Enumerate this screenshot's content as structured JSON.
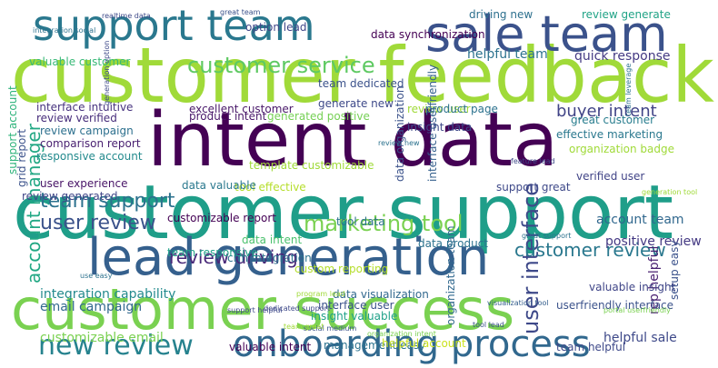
{
  "wordcloud": {
    "words": [
      {
        "text": "customer feedback",
        "weight": 1.0,
        "color": "#a0da39"
      },
      {
        "text": "intent data",
        "weight": 0.95,
        "color": "#440154"
      },
      {
        "text": "customer support",
        "weight": 0.93,
        "color": "#1f9e89"
      },
      {
        "text": "lead generation",
        "weight": 0.86,
        "color": "#35608d"
      },
      {
        "text": "customer success",
        "weight": 0.85,
        "color": "#7ad151"
      },
      {
        "text": "support team",
        "weight": 0.72,
        "color": "#2a788e"
      },
      {
        "text": "sale team",
        "weight": 0.7,
        "color": "#3b528b"
      },
      {
        "text": "onboarding process",
        "weight": 0.55,
        "color": "#31688e"
      },
      {
        "text": "new review",
        "weight": 0.45,
        "color": "#26828e"
      },
      {
        "text": "customer service",
        "weight": 0.34,
        "color": "#5ec962"
      },
      {
        "text": "marketing tool",
        "weight": 0.3,
        "color": "#7ad151"
      },
      {
        "text": "user interface",
        "weight": 0.27,
        "color": "#3e4989"
      },
      {
        "text": "account manager",
        "weight": 0.26,
        "color": "#22a884"
      },
      {
        "text": "team support",
        "weight": 0.25,
        "color": "#2c728e"
      },
      {
        "text": "user review",
        "weight": 0.25,
        "color": "#3b528b"
      },
      {
        "text": "customer review",
        "weight": 0.24,
        "color": "#2a788e"
      },
      {
        "text": "review driving",
        "weight": 0.22,
        "color": "#482878"
      },
      {
        "text": "buyer intent",
        "weight": 0.2,
        "color": "#414487"
      },
      {
        "text": "helpful sale",
        "weight": 0.19,
        "color": "#3e4989"
      },
      {
        "text": "quick response",
        "weight": 0.16,
        "color": "#443a83"
      },
      {
        "text": "helpful team",
        "weight": 0.16,
        "color": "#2c728e"
      },
      {
        "text": "customizable email",
        "weight": 0.16,
        "color": "#7ad151"
      },
      {
        "text": "email campaign",
        "weight": 0.15,
        "color": "#31688e"
      },
      {
        "text": "account team",
        "weight": 0.15,
        "color": "#31688e"
      },
      {
        "text": "positive review",
        "weight": 0.14,
        "color": "#443983"
      },
      {
        "text": "integration capability",
        "weight": 0.14,
        "color": "#238a8d"
      },
      {
        "text": "setup easy",
        "weight": 0.14,
        "color": "#3b528b"
      },
      {
        "text": "rep helpful",
        "weight": 0.14,
        "color": "#481f70"
      },
      {
        "text": "excellent customer",
        "weight": 0.13,
        "color": "#481769"
      },
      {
        "text": "product intent",
        "weight": 0.13,
        "color": "#481769"
      },
      {
        "text": "review campaign",
        "weight": 0.13,
        "color": "#2d708e"
      },
      {
        "text": "driving new",
        "weight": 0.13,
        "color": "#2d708e"
      },
      {
        "text": "review generate",
        "weight": 0.13,
        "color": "#20a386"
      },
      {
        "text": "interface intuitive",
        "weight": 0.12,
        "color": "#46327e"
      },
      {
        "text": "review verified",
        "weight": 0.12,
        "color": "#472d7b"
      },
      {
        "text": "comparison report",
        "weight": 0.12,
        "color": "#481f70"
      },
      {
        "text": "responsive account",
        "weight": 0.12,
        "color": "#238a8d"
      },
      {
        "text": "generated positive",
        "weight": 0.12,
        "color": "#75d054"
      },
      {
        "text": "great customer",
        "weight": 0.12,
        "color": "#287d8e"
      },
      {
        "text": "effective marketing",
        "weight": 0.12,
        "color": "#2a788e"
      },
      {
        "text": "organization badge",
        "weight": 0.12,
        "color": "#a0da39"
      },
      {
        "text": "template customizable",
        "weight": 0.12,
        "color": "#a0da39"
      },
      {
        "text": "verified user",
        "weight": 0.12,
        "color": "#414487"
      },
      {
        "text": "valuable customer",
        "weight": 0.12,
        "color": "#38b977"
      },
      {
        "text": "generate new",
        "weight": 0.11,
        "color": "#3e4989"
      },
      {
        "text": "customizable report",
        "weight": 0.11,
        "color": "#440154"
      },
      {
        "text": "review generated",
        "weight": 0.11,
        "color": "#404688"
      },
      {
        "text": "user experience",
        "weight": 0.11,
        "color": "#481467"
      },
      {
        "text": "team helpful",
        "weight": 0.11,
        "color": "#3e4989"
      },
      {
        "text": "support account",
        "weight": 0.11,
        "color": "#2fb47c"
      },
      {
        "text": "tool effective",
        "weight": 0.11,
        "color": "#b5de2b"
      },
      {
        "text": "support great",
        "weight": 0.1,
        "color": "#3e4989"
      },
      {
        "text": "crm integration",
        "weight": 0.1,
        "color": "#2c728e"
      },
      {
        "text": "team responsive",
        "weight": 0.1,
        "color": "#1fa188"
      },
      {
        "text": "data intent",
        "weight": 0.1,
        "color": "#4ac16d"
      },
      {
        "text": "interface user",
        "weight": 0.09,
        "color": "#3b528b"
      },
      {
        "text": "insight valuable",
        "weight": 0.09,
        "color": "#1fa188"
      },
      {
        "text": "valuable intent",
        "weight": 0.09,
        "color": "#440154"
      },
      {
        "text": "management easy",
        "weight": 0.09,
        "color": "#2c728e"
      },
      {
        "text": "helpful account",
        "weight": 0.09,
        "color": "#cae11f"
      },
      {
        "text": "review user",
        "weight": 0.09,
        "color": "#a0da39"
      },
      {
        "text": "product page",
        "weight": 0.09,
        "color": "#2c728e"
      },
      {
        "text": "userfriendly interface",
        "weight": 0.09,
        "color": "#3b528b"
      },
      {
        "text": "data visualization",
        "weight": 0.08,
        "color": "#31688e"
      },
      {
        "text": "organization team",
        "weight": 0.08,
        "color": "#31688e"
      },
      {
        "text": "interface userfriendly",
        "weight": 0.08,
        "color": "#35608d"
      },
      {
        "text": "data product",
        "weight": 0.08,
        "color": "#2c728e"
      },
      {
        "text": "data valuable",
        "weight": 0.08,
        "color": "#2a788e"
      },
      {
        "text": "custom reporting",
        "weight": 0.08,
        "color": "#b5de2b"
      },
      {
        "text": "tool data",
        "weight": 0.08,
        "color": "#2c728e"
      },
      {
        "text": "option lead",
        "weight": 0.08,
        "color": "#404688"
      },
      {
        "text": "data synchronization",
        "weight": 0.08,
        "color": "#440154"
      },
      {
        "text": "valuable insight",
        "weight": 0.08,
        "color": "#404688"
      },
      {
        "text": "insight data",
        "weight": 0.08,
        "color": "#3e4989"
      },
      {
        "text": "team dedicated",
        "weight": 0.07,
        "color": "#3b528b"
      },
      {
        "text": "data organization",
        "weight": 0.07,
        "color": "#3b528b"
      },
      {
        "text": "grid report",
        "weight": 0.07,
        "color": "#3b528b"
      },
      {
        "text": "realtime data",
        "weight": 0.07,
        "color": "#3e4989"
      },
      {
        "text": "review new",
        "weight": 0.07,
        "color": "#2c728e"
      },
      {
        "text": "organization intent",
        "weight": 0.07,
        "color": "#7ad151"
      },
      {
        "text": "visualization tool",
        "weight": 0.07,
        "color": "#355f8d"
      },
      {
        "text": "integration social",
        "weight": 0.07,
        "color": "#2c728e"
      },
      {
        "text": "feature lead",
        "weight": 0.06,
        "color": "#3e4989"
      },
      {
        "text": "generation option",
        "weight": 0.06,
        "color": "#3e4989"
      },
      {
        "text": "great team",
        "weight": 0.06,
        "color": "#3b528b"
      },
      {
        "text": "dedicated support",
        "weight": 0.06,
        "color": "#3e4989"
      },
      {
        "text": "generation tool",
        "weight": 0.06,
        "color": "#a0da39"
      },
      {
        "text": "social medium",
        "weight": 0.06,
        "color": "#3b528b"
      },
      {
        "text": "program lead",
        "weight": 0.06,
        "color": "#a0da39"
      },
      {
        "text": "support helpful",
        "weight": 0.06,
        "color": "#3e4989"
      },
      {
        "text": "team leverage",
        "weight": 0.06,
        "color": "#2c728e"
      },
      {
        "text": "tool lead",
        "weight": 0.05,
        "color": "#3b528b"
      },
      {
        "text": "team great",
        "weight": 0.05,
        "color": "#a0da39"
      },
      {
        "text": "use easy",
        "weight": 0.05,
        "color": "#2c728e"
      },
      {
        "text": "great support",
        "weight": 0.05,
        "color": "#2c728e"
      },
      {
        "text": "portal userfriendly",
        "weight": 0.05,
        "color": "#7ad151"
      },
      {
        "text": "support excellent",
        "weight": 0.05,
        "color": "#3b528b"
      },
      {
        "text": "easy use",
        "weight": 0.05,
        "color": "#3b528b"
      },
      {
        "text": "feedback gather",
        "weight": 0.05,
        "color": "#3b528b"
      },
      {
        "text": "strong customer",
        "weight": 0.05,
        "color": "#2c728e"
      },
      {
        "text": "organization easy",
        "weight": 0.05,
        "color": "#2c728e"
      }
    ]
  }
}
